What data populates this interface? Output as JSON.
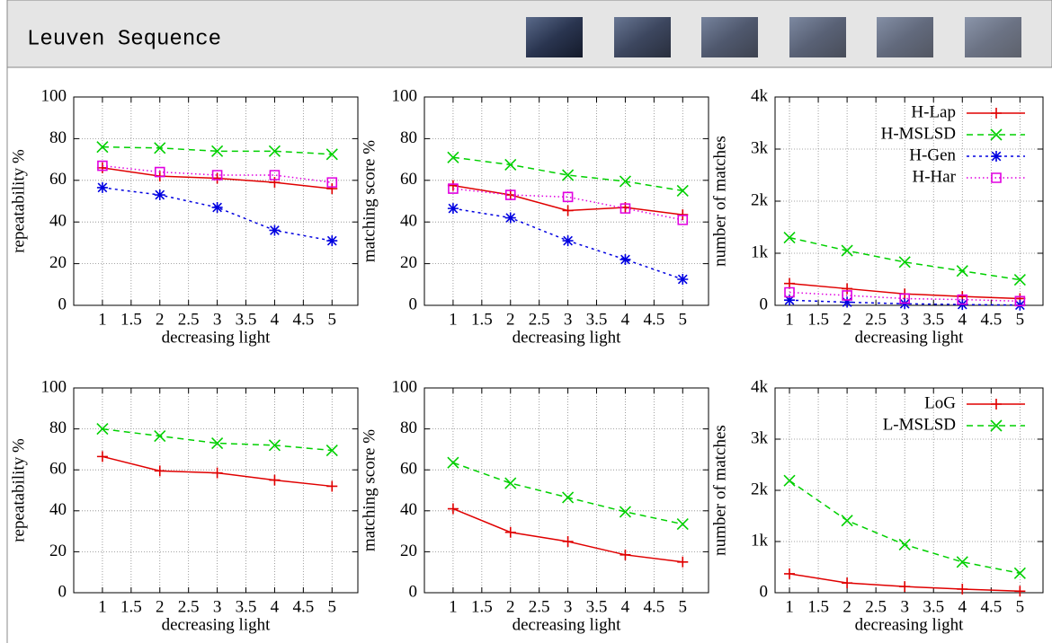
{
  "header": {
    "title": "Leuven Sequence"
  },
  "chart_data": [
    {
      "type": "line",
      "x": [
        1,
        2,
        3,
        4,
        5
      ],
      "xlim": [
        0.5,
        5.45
      ],
      "xticks": [
        1,
        1.5,
        2,
        2.5,
        3,
        3.5,
        4,
        4.5,
        5
      ],
      "ylim": [
        0,
        100
      ],
      "yticks": [
        0,
        20,
        40,
        60,
        80,
        100
      ],
      "x_label": "decreasing light",
      "y_label": "repeatability %",
      "grid": true,
      "series": [
        {
          "color": "#e00000",
          "marker": "plus",
          "dash": "solid",
          "values": [
            66,
            62,
            61,
            59,
            56
          ]
        },
        {
          "color": "#00d000",
          "marker": "cross",
          "dash": "dashed",
          "values": [
            76,
            75.5,
            74,
            74,
            72.5
          ]
        },
        {
          "color": "#0000e0",
          "marker": "star",
          "dash": "short-dashed",
          "values": [
            56.5,
            53,
            47,
            36,
            31
          ]
        },
        {
          "color": "#e000e0",
          "marker": "square",
          "dash": "dotted",
          "values": [
            67,
            64,
            62.5,
            62.5,
            59
          ]
        }
      ]
    },
    {
      "type": "line",
      "x": [
        1,
        2,
        3,
        4,
        5
      ],
      "xlim": [
        0.5,
        5.45
      ],
      "xticks": [
        1,
        1.5,
        2,
        2.5,
        3,
        3.5,
        4,
        4.5,
        5
      ],
      "ylim": [
        0,
        100
      ],
      "yticks": [
        0,
        20,
        40,
        60,
        80,
        100
      ],
      "x_label": "decreasing light",
      "y_label": "matching score %",
      "grid": true,
      "series": [
        {
          "color": "#e00000",
          "marker": "plus",
          "dash": "solid",
          "values": [
            57.5,
            53,
            45.5,
            47,
            43.5
          ]
        },
        {
          "color": "#00d000",
          "marker": "cross",
          "dash": "dashed",
          "values": [
            71,
            67.5,
            62.5,
            59.5,
            55
          ]
        },
        {
          "color": "#0000e0",
          "marker": "star",
          "dash": "short-dashed",
          "values": [
            46.5,
            42,
            31,
            22,
            12.5
          ]
        },
        {
          "color": "#e000e0",
          "marker": "square",
          "dash": "dotted",
          "values": [
            56,
            53,
            52,
            46.5,
            41
          ]
        }
      ]
    },
    {
      "type": "line",
      "x": [
        1,
        2,
        3,
        4,
        5
      ],
      "xlim": [
        0.75,
        5.4
      ],
      "xticks": [
        1,
        1.5,
        2,
        2.5,
        3,
        3.5,
        4,
        4.5,
        5
      ],
      "ylim": [
        0,
        4000
      ],
      "yticks": [
        0,
        {
          "value": 1000,
          "label": "1k"
        },
        {
          "value": 2000,
          "label": "2k"
        },
        {
          "value": 3000,
          "label": "3k"
        },
        {
          "value": 4000,
          "label": "4k"
        }
      ],
      "x_label": "decreasing light",
      "y_label": "number of matches",
      "grid": true,
      "legend": "top-right",
      "series": [
        {
          "name": "H-Lap",
          "color": "#e00000",
          "marker": "plus",
          "dash": "solid",
          "values": [
            420,
            320,
            220,
            170,
            130
          ]
        },
        {
          "name": "H-MSLSD",
          "color": "#00d000",
          "marker": "cross",
          "dash": "dashed",
          "values": [
            1300,
            1050,
            830,
            660,
            490
          ]
        },
        {
          "name": "H-Gen",
          "color": "#0000e0",
          "marker": "star",
          "dash": "short-dashed",
          "values": [
            100,
            60,
            30,
            15,
            5
          ]
        },
        {
          "name": "H-Har",
          "color": "#e000e0",
          "marker": "square",
          "dash": "dotted",
          "values": [
            250,
            190,
            130,
            110,
            80
          ]
        }
      ]
    },
    {
      "type": "line",
      "x": [
        1,
        2,
        3,
        4,
        5
      ],
      "xlim": [
        0.5,
        5.45
      ],
      "xticks": [
        1,
        1.5,
        2,
        2.5,
        3,
        3.5,
        4,
        4.5,
        5
      ],
      "ylim": [
        0,
        100
      ],
      "yticks": [
        0,
        20,
        40,
        60,
        80,
        100
      ],
      "x_label": "decreasing light",
      "y_label": "repeatability %",
      "grid": true,
      "series": [
        {
          "color": "#e00000",
          "marker": "plus",
          "dash": "solid",
          "values": [
            66.5,
            59.5,
            58.5,
            55,
            52
          ]
        },
        {
          "color": "#00d000",
          "marker": "cross",
          "dash": "dashed",
          "values": [
            80,
            76.5,
            73,
            72,
            69.5
          ]
        }
      ]
    },
    {
      "type": "line",
      "x": [
        1,
        2,
        3,
        4,
        5
      ],
      "xlim": [
        0.5,
        5.45
      ],
      "xticks": [
        1,
        1.5,
        2,
        2.5,
        3,
        3.5,
        4,
        4.5,
        5
      ],
      "ylim": [
        0,
        100
      ],
      "yticks": [
        0,
        20,
        40,
        60,
        80,
        100
      ],
      "x_label": "decreasing light",
      "y_label": "matching score %",
      "grid": true,
      "series": [
        {
          "color": "#e00000",
          "marker": "plus",
          "dash": "solid",
          "values": [
            41,
            29.5,
            25,
            18.5,
            15
          ]
        },
        {
          "color": "#00d000",
          "marker": "cross",
          "dash": "dashed",
          "values": [
            63.5,
            53.5,
            46.5,
            39.5,
            33.5
          ]
        }
      ]
    },
    {
      "type": "line",
      "x": [
        1,
        2,
        3,
        4,
        5
      ],
      "xlim": [
        0.75,
        5.4
      ],
      "xticks": [
        1,
        1.5,
        2,
        2.5,
        3,
        3.5,
        4,
        4.5,
        5
      ],
      "ylim": [
        0,
        4000
      ],
      "yticks": [
        0,
        {
          "value": 1000,
          "label": "1k"
        },
        {
          "value": 2000,
          "label": "2k"
        },
        {
          "value": 3000,
          "label": "3k"
        },
        {
          "value": 4000,
          "label": "4k"
        }
      ],
      "x_label": "decreasing light",
      "y_label": "number of matches",
      "grid": true,
      "legend": "top-right",
      "series": [
        {
          "name": "LoG",
          "color": "#e00000",
          "marker": "plus",
          "dash": "solid",
          "values": [
            370,
            190,
            120,
            70,
            30
          ]
        },
        {
          "name": "L-MSLSD",
          "color": "#00d000",
          "marker": "cross",
          "dash": "dashed",
          "values": [
            2190,
            1410,
            940,
            600,
            380
          ]
        }
      ]
    }
  ]
}
